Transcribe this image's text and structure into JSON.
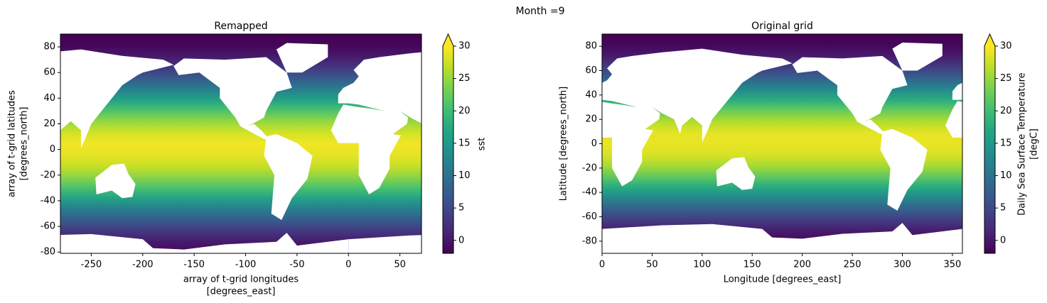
{
  "suptitle": "Month =9",
  "chart_data": [
    {
      "type": "heatmap",
      "title": "Remapped",
      "xlabel": [
        "array of t-grid longitudes",
        "[degrees_east]"
      ],
      "ylabel": [
        "array of t-grid latitudes",
        "[degrees_north]"
      ],
      "xlim": [
        -280,
        71
      ],
      "ylim": [
        -81,
        90
      ],
      "xticks": [
        -250,
        -200,
        -150,
        -100,
        -50,
        0,
        50
      ],
      "yticks": [
        -80,
        -60,
        -40,
        -20,
        0,
        20,
        40,
        60,
        80
      ],
      "colorbar": {
        "label": [
          "sst"
        ],
        "colormap": "viridis",
        "clim": [
          -2,
          30
        ],
        "ticks": [
          0,
          5,
          10,
          15,
          20,
          25,
          30
        ],
        "extend": "max"
      }
    },
    {
      "type": "heatmap",
      "title": "Original grid",
      "xlabel": [
        "Longitude [degrees_east]"
      ],
      "ylabel": [
        "Latitude [degrees_north]"
      ],
      "xlim": [
        0,
        360
      ],
      "ylim": [
        -90,
        90
      ],
      "xticks": [
        0,
        50,
        100,
        150,
        200,
        250,
        300,
        350
      ],
      "yticks": [
        -80,
        -60,
        -40,
        -20,
        0,
        20,
        40,
        60,
        80
      ],
      "colorbar": {
        "label": [
          "Daily Sea Surface Temperature",
          "[degC]"
        ],
        "colormap": "viridis",
        "clim": [
          -2,
          30
        ],
        "ticks": [
          0,
          5,
          10,
          15,
          20,
          25,
          30
        ],
        "extend": "max"
      }
    }
  ]
}
